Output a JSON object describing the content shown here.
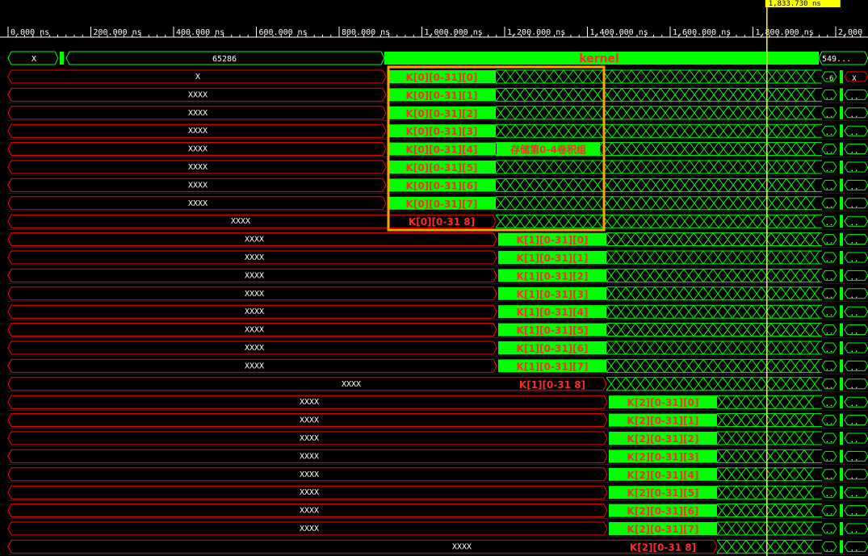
{
  "cursor": {
    "label": "1,833.730 ns"
  },
  "time_axis": {
    "unit": "ns",
    "ticks": [
      "0.000 ns",
      "200.000 ns",
      "400.000 ns",
      "600.000 ns",
      "800.000 ns",
      "1,000.000 ns",
      "1,200.000 ns",
      "1,400.000 ns",
      "1,600.000 ns",
      "1,800.000 ns",
      "2,000"
    ]
  },
  "bus_row": {
    "left_value": "X",
    "mid_value": "65286",
    "kernel_label": "kernel",
    "right_value": "549..."
  },
  "row1": {
    "left_value": "X",
    "end_value_a": "-6",
    "end_value_b": "X"
  },
  "stub": "XXXX",
  "ellipsis": "..",
  "k0": {
    "labels": [
      "K[0][0-31][0]",
      "K[0][0-31][1]",
      "K[0][0-31][2]",
      "K[0][0-31][3]",
      "K[0][0-31][4]",
      "K[0][0-31][5]",
      "K[0][0-31][6]",
      "K[0][0-31][7]"
    ],
    "label_last": "K[0][0-31 8]"
  },
  "k1": {
    "labels": [
      "K[1][0-31][0]",
      "K[1][0-31][1]",
      "K[1][0-31][2]",
      "K[1][0-31][3]",
      "K[1][0-31][4]",
      "K[1][0-31][5]",
      "K[1][0-31][6]",
      "K[1][0-31][7]"
    ],
    "label_last": "K[1][0-31 8]"
  },
  "k2": {
    "labels": [
      "K[2][0-31][0]",
      "K[2][0-31][1]",
      "K[2][0-31][2]",
      "K[2][0-31][3]",
      "K[2][0-31][4]",
      "K[2][0-31][5]",
      "K[2][0-31][6]",
      "K[2][0-31][7]"
    ],
    "label_last": "K[2][0-31 8]"
  },
  "annotation": {
    "text": "存储第0-4卷积组",
    "color": "#ffa500"
  },
  "colors": {
    "bg": "#000000",
    "red": "#ff0000",
    "green": "#00ff00",
    "cursor": "#ffff00",
    "label": "#ff2a2a",
    "ruler": "#ffffff"
  }
}
